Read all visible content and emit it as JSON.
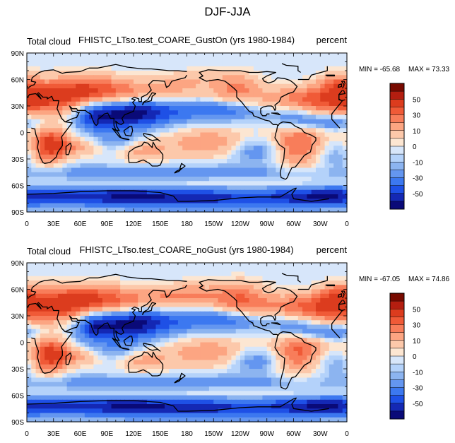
{
  "title": "DJF-JJA",
  "colormap": [
    "#0a0a78",
    "#1428b4",
    "#1e50e6",
    "#3c78f0",
    "#6496f0",
    "#8cb4f0",
    "#b4d2fa",
    "#d7e6fa",
    "#fce6d2",
    "#fcc8aa",
    "#fca582",
    "#f87d5a",
    "#f05a37",
    "#dc3c1e",
    "#b41e10",
    "#780a00"
  ],
  "colorbar": {
    "labels": [
      "50",
      "30",
      "10",
      "0",
      "-10",
      "-30",
      "-50"
    ]
  },
  "x_ticks": [
    "0",
    "30E",
    "60E",
    "90E",
    "120E",
    "150E",
    "180",
    "150W",
    "120W",
    "90W",
    "60W",
    "30W",
    "0"
  ],
  "y_ticks": [
    "90N",
    "60N",
    "30N",
    "0",
    "30S",
    "60S",
    "90S"
  ],
  "chart_data": [
    {
      "type": "heatmap",
      "left_title": "Total cloud",
      "center_title": "FHISTC_LTso.test_COARE_GustOn (yrs 1980-1984)",
      "right_title": "percent",
      "min_label": "MIN = -65.68",
      "max_label": "MAX =  73.33",
      "min": -65.68,
      "max": 73.33,
      "xlim": [
        0,
        360
      ],
      "ylim": [
        -90,
        90
      ],
      "levels": [
        -50,
        -40,
        -30,
        -20,
        -10,
        -5,
        0,
        5,
        10,
        20,
        30,
        40,
        50
      ],
      "features": [
        {
          "lon": 30,
          "lat": 40,
          "rx": 40,
          "ry": 14,
          "v": 45
        },
        {
          "lon": 75,
          "lat": 50,
          "rx": 30,
          "ry": 12,
          "v": 30
        },
        {
          "lon": 140,
          "lat": 45,
          "rx": 40,
          "ry": 10,
          "v": 25
        },
        {
          "lon": 180,
          "lat": 60,
          "rx": 25,
          "ry": 8,
          "v": 15
        },
        {
          "lon": 235,
          "lat": 50,
          "rx": 20,
          "ry": 14,
          "v": 30
        },
        {
          "lon": 315,
          "lat": 35,
          "rx": 40,
          "ry": 12,
          "v": 40
        },
        {
          "lon": 350,
          "lat": 55,
          "rx": 15,
          "ry": 10,
          "v": 25
        },
        {
          "lon": 110,
          "lat": 20,
          "rx": 30,
          "ry": 12,
          "v": -45
        },
        {
          "lon": 75,
          "lat": 20,
          "rx": 15,
          "ry": 12,
          "v": -30
        },
        {
          "lon": 150,
          "lat": 25,
          "rx": 35,
          "ry": 10,
          "v": -25
        },
        {
          "lon": 225,
          "lat": 25,
          "rx": 30,
          "ry": 8,
          "v": -30
        },
        {
          "lon": 300,
          "lat": 20,
          "rx": 20,
          "ry": 10,
          "v": -30
        },
        {
          "lon": 340,
          "lat": 12,
          "rx": 25,
          "ry": 6,
          "v": -25
        },
        {
          "lon": 25,
          "lat": -15,
          "rx": 15,
          "ry": 15,
          "v": 55
        },
        {
          "lon": 60,
          "lat": -15,
          "rx": 22,
          "ry": 8,
          "v": 25
        },
        {
          "lon": 130,
          "lat": -20,
          "rx": 20,
          "ry": 10,
          "v": 25
        },
        {
          "lon": 205,
          "lat": -12,
          "rx": 35,
          "ry": 12,
          "v": 30
        },
        {
          "lon": 305,
          "lat": -15,
          "rx": 22,
          "ry": 18,
          "v": 45
        },
        {
          "lon": 260,
          "lat": -20,
          "rx": 25,
          "ry": 10,
          "v": -25
        },
        {
          "lon": 345,
          "lat": -25,
          "rx": 22,
          "ry": 10,
          "v": -15
        },
        {
          "lon": 100,
          "lat": -10,
          "rx": 25,
          "ry": 8,
          "v": -20
        },
        {
          "lon": 50,
          "lat": -45,
          "rx": 40,
          "ry": 6,
          "v": -12
        },
        {
          "lon": 160,
          "lat": -45,
          "rx": 50,
          "ry": 6,
          "v": -15
        },
        {
          "lon": 270,
          "lat": -45,
          "rx": 50,
          "ry": 6,
          "v": -12
        },
        {
          "lon": 180,
          "lat": -58,
          "rx": 180,
          "ry": 4,
          "v": 8
        },
        {
          "lon": 90,
          "lat": -72,
          "rx": 70,
          "ry": 8,
          "v": -40
        },
        {
          "lon": 220,
          "lat": -75,
          "rx": 80,
          "ry": 8,
          "v": -35
        },
        {
          "lon": 330,
          "lat": -72,
          "rx": 40,
          "ry": 8,
          "v": -30
        }
      ]
    },
    {
      "type": "heatmap",
      "left_title": "Total cloud",
      "center_title": "FHISTC_LTso.test_COARE_noGust (yrs 1980-1984)",
      "right_title": "percent",
      "min_label": "MIN = -67.05",
      "max_label": "MAX =  74.86",
      "min": -67.05,
      "max": 74.86,
      "xlim": [
        0,
        360
      ],
      "ylim": [
        -90,
        90
      ],
      "levels": [
        -50,
        -40,
        -30,
        -20,
        -10,
        -5,
        0,
        5,
        10,
        20,
        30,
        40,
        50
      ],
      "features": [
        {
          "lon": 30,
          "lat": 42,
          "rx": 40,
          "ry": 14,
          "v": 45
        },
        {
          "lon": 75,
          "lat": 50,
          "rx": 30,
          "ry": 12,
          "v": 30
        },
        {
          "lon": 140,
          "lat": 48,
          "rx": 40,
          "ry": 10,
          "v": 25
        },
        {
          "lon": 185,
          "lat": 55,
          "rx": 25,
          "ry": 10,
          "v": 20
        },
        {
          "lon": 240,
          "lat": 50,
          "rx": 22,
          "ry": 14,
          "v": 35
        },
        {
          "lon": 315,
          "lat": 38,
          "rx": 40,
          "ry": 12,
          "v": 40
        },
        {
          "lon": 350,
          "lat": 55,
          "rx": 15,
          "ry": 10,
          "v": 25
        },
        {
          "lon": 110,
          "lat": 18,
          "rx": 30,
          "ry": 12,
          "v": -45
        },
        {
          "lon": 75,
          "lat": 20,
          "rx": 15,
          "ry": 12,
          "v": -30
        },
        {
          "lon": 150,
          "lat": 25,
          "rx": 35,
          "ry": 10,
          "v": -25
        },
        {
          "lon": 225,
          "lat": 25,
          "rx": 30,
          "ry": 8,
          "v": -30
        },
        {
          "lon": 300,
          "lat": 20,
          "rx": 20,
          "ry": 10,
          "v": -30
        },
        {
          "lon": 340,
          "lat": 12,
          "rx": 25,
          "ry": 6,
          "v": -25
        },
        {
          "lon": 25,
          "lat": -15,
          "rx": 15,
          "ry": 15,
          "v": 55
        },
        {
          "lon": 60,
          "lat": -15,
          "rx": 22,
          "ry": 8,
          "v": 25
        },
        {
          "lon": 130,
          "lat": -20,
          "rx": 20,
          "ry": 10,
          "v": 25
        },
        {
          "lon": 205,
          "lat": -12,
          "rx": 35,
          "ry": 12,
          "v": 30
        },
        {
          "lon": 305,
          "lat": -12,
          "rx": 22,
          "ry": 18,
          "v": 45
        },
        {
          "lon": 260,
          "lat": -20,
          "rx": 25,
          "ry": 10,
          "v": -25
        },
        {
          "lon": 345,
          "lat": -25,
          "rx": 22,
          "ry": 10,
          "v": -15
        },
        {
          "lon": 100,
          "lat": -10,
          "rx": 25,
          "ry": 8,
          "v": -20
        },
        {
          "lon": 50,
          "lat": -45,
          "rx": 40,
          "ry": 6,
          "v": -12
        },
        {
          "lon": 160,
          "lat": -45,
          "rx": 50,
          "ry": 6,
          "v": -15
        },
        {
          "lon": 270,
          "lat": -45,
          "rx": 50,
          "ry": 6,
          "v": -12
        },
        {
          "lon": 180,
          "lat": -58,
          "rx": 180,
          "ry": 4,
          "v": 8
        },
        {
          "lon": 90,
          "lat": -72,
          "rx": 70,
          "ry": 8,
          "v": -40
        },
        {
          "lon": 220,
          "lat": -75,
          "rx": 80,
          "ry": 8,
          "v": -35
        },
        {
          "lon": 330,
          "lat": -72,
          "rx": 40,
          "ry": 8,
          "v": -30
        }
      ]
    }
  ]
}
